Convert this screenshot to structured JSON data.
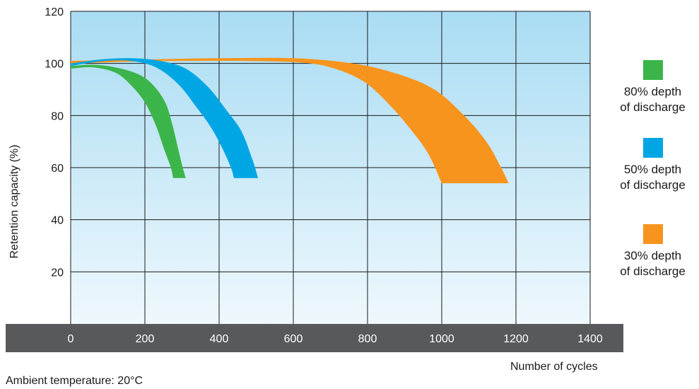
{
  "chart_data": {
    "type": "area",
    "xlabel": "Number of cycles",
    "ylabel": "Retention capacity (%)",
    "xlim": [
      0,
      1400
    ],
    "ylim": [
      0,
      120
    ],
    "x_ticks": [
      "0",
      "200",
      "400",
      "600",
      "800",
      "1000",
      "1200",
      "1400"
    ],
    "y_ticks": [
      "20",
      "40",
      "60",
      "80",
      "100",
      "120"
    ],
    "grid": true,
    "legend_position": "right",
    "series": [
      {
        "name": "80% depth of discharge",
        "color": "#3bb54a",
        "upper": [
          [
            0,
            99
          ],
          [
            60,
            99.5
          ],
          [
            120,
            98.5
          ],
          [
            180,
            96
          ],
          [
            220,
            92
          ],
          [
            255,
            85
          ],
          [
            275,
            76
          ],
          [
            290,
            67
          ],
          [
            302,
            60
          ],
          [
            310,
            56
          ]
        ],
        "lower": [
          [
            0,
            98
          ],
          [
            60,
            98.5
          ],
          [
            120,
            96.5
          ],
          [
            160,
            92
          ],
          [
            200,
            85
          ],
          [
            230,
            76
          ],
          [
            252,
            67
          ],
          [
            270,
            60
          ],
          [
            276,
            56
          ]
        ]
      },
      {
        "name": "50% depth of discharge",
        "color": "#00a6e4",
        "upper": [
          [
            0,
            100
          ],
          [
            80,
            101.5
          ],
          [
            160,
            102
          ],
          [
            240,
            101
          ],
          [
            310,
            98
          ],
          [
            370,
            91
          ],
          [
            420,
            82
          ],
          [
            460,
            74
          ],
          [
            490,
            63
          ],
          [
            505,
            56
          ]
        ],
        "lower": [
          [
            0,
            99
          ],
          [
            80,
            100.8
          ],
          [
            160,
            101
          ],
          [
            230,
            98.5
          ],
          [
            290,
            92
          ],
          [
            340,
            83
          ],
          [
            380,
            75
          ],
          [
            410,
            67
          ],
          [
            432,
            60
          ],
          [
            440,
            56
          ]
        ]
      },
      {
        "name": "30% depth of discharge",
        "color": "#f7941d",
        "upper": [
          [
            0,
            101
          ],
          [
            200,
            101.5
          ],
          [
            400,
            102
          ],
          [
            600,
            102
          ],
          [
            760,
            100
          ],
          [
            880,
            96
          ],
          [
            980,
            90
          ],
          [
            1060,
            80
          ],
          [
            1120,
            70
          ],
          [
            1160,
            60
          ],
          [
            1180,
            54
          ]
        ],
        "lower": [
          [
            0,
            100
          ],
          [
            200,
            100.8
          ],
          [
            400,
            101
          ],
          [
            600,
            100.5
          ],
          [
            700,
            98.5
          ],
          [
            790,
            93
          ],
          [
            860,
            84
          ],
          [
            920,
            74
          ],
          [
            965,
            65
          ],
          [
            1000,
            54
          ]
        ]
      }
    ],
    "legend": [
      {
        "label": "80% depth\nof discharge",
        "color": "#3bb54a"
      },
      {
        "label": "50% depth\nof discharge",
        "color": "#00a6e4"
      },
      {
        "label": "30% depth\nof discharge",
        "color": "#f7941d"
      }
    ],
    "annotation": "Ambient temperature: 20°C"
  },
  "colors": {
    "plot_top": "#a9dcf3",
    "plot_bottom": "#eef8fd",
    "axis_band": "#58595b",
    "grid": "#1a1a1a"
  }
}
